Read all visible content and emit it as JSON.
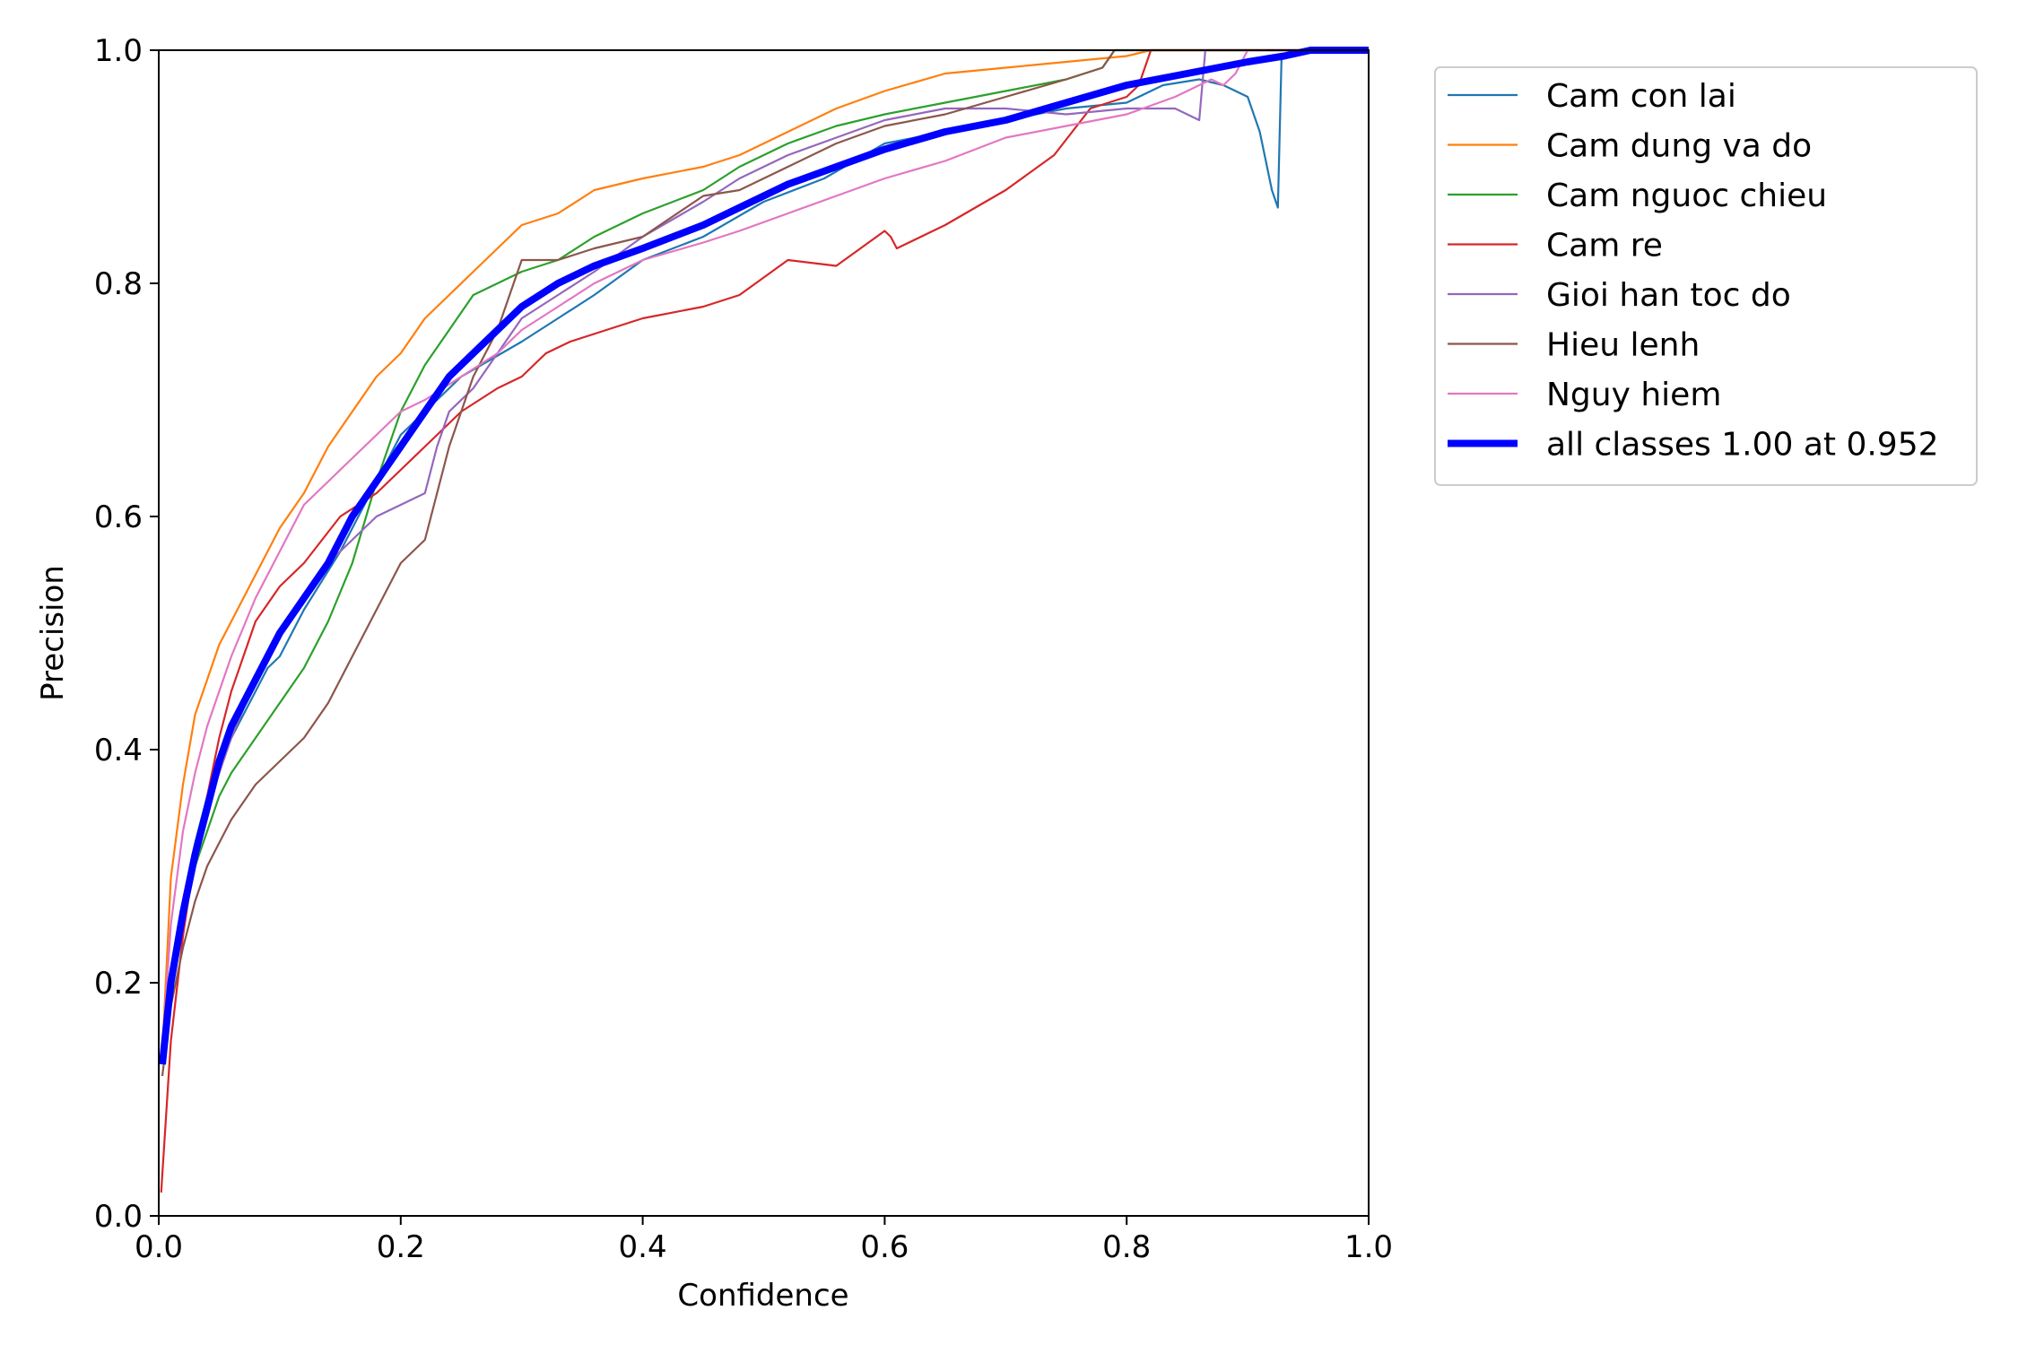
{
  "chart_data": {
    "type": "line",
    "title": "",
    "xlabel": "Confidence",
    "ylabel": "Precision",
    "xlim": [
      0.0,
      1.0
    ],
    "ylim": [
      0.0,
      1.0
    ],
    "xticks": [
      "0.0",
      "0.2",
      "0.4",
      "0.6",
      "0.8",
      "1.0"
    ],
    "yticks": [
      "0.0",
      "0.2",
      "0.4",
      "0.6",
      "0.8",
      "1.0"
    ],
    "grid": false,
    "legend_position": "outside upper-right",
    "series": [
      {
        "name": "Cam con lai",
        "color": "#1f77b4",
        "x": [
          0.003,
          0.01,
          0.02,
          0.03,
          0.04,
          0.05,
          0.06,
          0.07,
          0.08,
          0.09,
          0.1,
          0.12,
          0.15,
          0.18,
          0.2,
          0.25,
          0.3,
          0.33,
          0.36,
          0.4,
          0.45,
          0.5,
          0.55,
          0.6,
          0.65,
          0.7,
          0.75,
          0.8,
          0.83,
          0.86,
          0.88,
          0.9,
          0.91,
          0.92,
          0.925,
          0.928,
          0.95,
          1.0
        ],
        "y": [
          0.13,
          0.2,
          0.27,
          0.32,
          0.36,
          0.39,
          0.41,
          0.43,
          0.45,
          0.47,
          0.48,
          0.52,
          0.57,
          0.63,
          0.67,
          0.72,
          0.75,
          0.77,
          0.79,
          0.82,
          0.84,
          0.87,
          0.89,
          0.92,
          0.93,
          0.94,
          0.95,
          0.955,
          0.97,
          0.975,
          0.97,
          0.96,
          0.93,
          0.88,
          0.865,
          0.995,
          1.0,
          1.0
        ]
      },
      {
        "name": "Cam dung va do",
        "color": "#ff7f0e",
        "x": [
          0.003,
          0.01,
          0.02,
          0.03,
          0.04,
          0.05,
          0.06,
          0.07,
          0.08,
          0.1,
          0.12,
          0.14,
          0.16,
          0.18,
          0.2,
          0.22,
          0.24,
          0.26,
          0.28,
          0.3,
          0.33,
          0.36,
          0.4,
          0.45,
          0.48,
          0.52,
          0.56,
          0.6,
          0.65,
          0.7,
          0.75,
          0.8,
          0.82,
          1.0
        ],
        "y": [
          0.14,
          0.29,
          0.37,
          0.43,
          0.46,
          0.49,
          0.51,
          0.53,
          0.55,
          0.59,
          0.62,
          0.66,
          0.69,
          0.72,
          0.74,
          0.77,
          0.79,
          0.81,
          0.83,
          0.85,
          0.86,
          0.88,
          0.89,
          0.9,
          0.91,
          0.93,
          0.95,
          0.965,
          0.98,
          0.985,
          0.99,
          0.995,
          1.0,
          1.0
        ]
      },
      {
        "name": "Cam nguoc chieu",
        "color": "#2ca02c",
        "x": [
          0.003,
          0.01,
          0.02,
          0.03,
          0.04,
          0.05,
          0.06,
          0.08,
          0.1,
          0.12,
          0.14,
          0.16,
          0.18,
          0.2,
          0.22,
          0.24,
          0.26,
          0.28,
          0.3,
          0.33,
          0.36,
          0.4,
          0.45,
          0.48,
          0.52,
          0.56,
          0.6,
          0.65,
          0.7,
          0.75,
          0.78,
          0.79,
          1.0
        ],
        "y": [
          0.13,
          0.2,
          0.26,
          0.3,
          0.33,
          0.36,
          0.38,
          0.41,
          0.44,
          0.47,
          0.51,
          0.56,
          0.63,
          0.69,
          0.73,
          0.76,
          0.79,
          0.8,
          0.81,
          0.82,
          0.84,
          0.86,
          0.88,
          0.9,
          0.92,
          0.935,
          0.945,
          0.955,
          0.965,
          0.975,
          0.985,
          1.0,
          1.0
        ]
      },
      {
        "name": "Cam re",
        "color": "#d62728",
        "x": [
          0.002,
          0.01,
          0.02,
          0.03,
          0.04,
          0.05,
          0.06,
          0.07,
          0.08,
          0.1,
          0.12,
          0.15,
          0.18,
          0.2,
          0.22,
          0.25,
          0.28,
          0.3,
          0.32,
          0.34,
          0.37,
          0.4,
          0.45,
          0.48,
          0.52,
          0.56,
          0.6,
          0.605,
          0.61,
          0.65,
          0.7,
          0.74,
          0.77,
          0.8,
          0.81,
          0.82,
          1.0
        ],
        "y": [
          0.02,
          0.15,
          0.24,
          0.31,
          0.36,
          0.41,
          0.45,
          0.48,
          0.51,
          0.54,
          0.56,
          0.6,
          0.62,
          0.64,
          0.66,
          0.69,
          0.71,
          0.72,
          0.74,
          0.75,
          0.76,
          0.77,
          0.78,
          0.79,
          0.82,
          0.815,
          0.845,
          0.84,
          0.83,
          0.85,
          0.88,
          0.91,
          0.95,
          0.96,
          0.97,
          1.0,
          1.0
        ]
      },
      {
        "name": "Gioi han toc do",
        "color": "#9467bd",
        "x": [
          0.003,
          0.01,
          0.02,
          0.03,
          0.04,
          0.05,
          0.06,
          0.08,
          0.1,
          0.12,
          0.14,
          0.16,
          0.18,
          0.2,
          0.22,
          0.23,
          0.24,
          0.26,
          0.28,
          0.3,
          0.33,
          0.36,
          0.4,
          0.45,
          0.48,
          0.52,
          0.56,
          0.6,
          0.65,
          0.7,
          0.75,
          0.8,
          0.84,
          0.86,
          0.865,
          1.0
        ],
        "y": [
          0.13,
          0.21,
          0.27,
          0.31,
          0.35,
          0.38,
          0.41,
          0.46,
          0.5,
          0.53,
          0.56,
          0.58,
          0.6,
          0.61,
          0.62,
          0.66,
          0.69,
          0.71,
          0.74,
          0.77,
          0.79,
          0.81,
          0.84,
          0.87,
          0.89,
          0.91,
          0.925,
          0.94,
          0.95,
          0.95,
          0.945,
          0.95,
          0.95,
          0.94,
          1.0,
          1.0
        ]
      },
      {
        "name": "Hieu lenh",
        "color": "#8c564b",
        "x": [
          0.003,
          0.01,
          0.02,
          0.03,
          0.04,
          0.05,
          0.06,
          0.08,
          0.1,
          0.12,
          0.14,
          0.16,
          0.18,
          0.2,
          0.21,
          0.22,
          0.23,
          0.24,
          0.26,
          0.28,
          0.3,
          0.33,
          0.36,
          0.4,
          0.45,
          0.48,
          0.52,
          0.56,
          0.6,
          0.65,
          0.7,
          0.75,
          0.78,
          0.79,
          1.0
        ],
        "y": [
          0.12,
          0.18,
          0.23,
          0.27,
          0.3,
          0.32,
          0.34,
          0.37,
          0.39,
          0.41,
          0.44,
          0.48,
          0.52,
          0.56,
          0.57,
          0.58,
          0.62,
          0.66,
          0.72,
          0.76,
          0.82,
          0.82,
          0.83,
          0.84,
          0.875,
          0.88,
          0.9,
          0.92,
          0.935,
          0.945,
          0.96,
          0.975,
          0.985,
          1.0,
          1.0
        ]
      },
      {
        "name": "Nguy hiem",
        "color": "#e377c2",
        "x": [
          0.003,
          0.01,
          0.02,
          0.03,
          0.04,
          0.05,
          0.06,
          0.08,
          0.1,
          0.12,
          0.14,
          0.16,
          0.18,
          0.2,
          0.22,
          0.25,
          0.28,
          0.3,
          0.33,
          0.36,
          0.4,
          0.45,
          0.48,
          0.52,
          0.56,
          0.6,
          0.65,
          0.7,
          0.75,
          0.8,
          0.84,
          0.87,
          0.88,
          0.89,
          0.9,
          1.0
        ],
        "y": [
          0.14,
          0.25,
          0.33,
          0.38,
          0.42,
          0.45,
          0.48,
          0.53,
          0.57,
          0.61,
          0.63,
          0.65,
          0.67,
          0.69,
          0.7,
          0.72,
          0.74,
          0.76,
          0.78,
          0.8,
          0.82,
          0.835,
          0.845,
          0.86,
          0.875,
          0.89,
          0.905,
          0.925,
          0.935,
          0.945,
          0.96,
          0.975,
          0.97,
          0.98,
          1.0,
          1.0
        ]
      },
      {
        "name": "all classes 1.00 at 0.952",
        "color": "#0000ff",
        "bold": true,
        "x": [
          0.003,
          0.01,
          0.02,
          0.03,
          0.04,
          0.05,
          0.06,
          0.08,
          0.1,
          0.12,
          0.14,
          0.16,
          0.18,
          0.2,
          0.22,
          0.24,
          0.26,
          0.28,
          0.3,
          0.33,
          0.36,
          0.4,
          0.45,
          0.48,
          0.52,
          0.56,
          0.6,
          0.65,
          0.7,
          0.75,
          0.8,
          0.85,
          0.9,
          0.93,
          0.952,
          1.0
        ],
        "y": [
          0.13,
          0.2,
          0.26,
          0.31,
          0.35,
          0.39,
          0.42,
          0.46,
          0.5,
          0.53,
          0.56,
          0.6,
          0.63,
          0.66,
          0.69,
          0.72,
          0.74,
          0.76,
          0.78,
          0.8,
          0.815,
          0.83,
          0.85,
          0.865,
          0.885,
          0.9,
          0.915,
          0.93,
          0.94,
          0.955,
          0.97,
          0.98,
          0.99,
          0.995,
          1.0,
          1.0
        ]
      }
    ]
  }
}
